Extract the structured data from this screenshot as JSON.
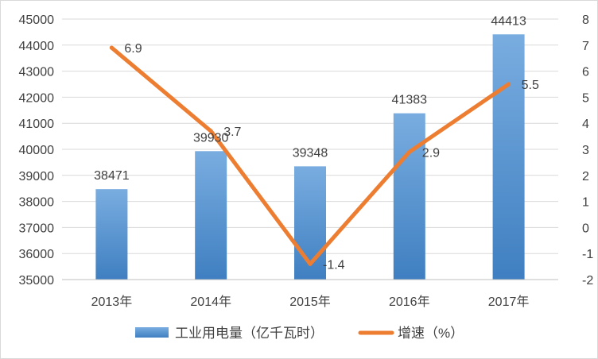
{
  "chart_data": {
    "type": "bar",
    "categories": [
      "2013年",
      "2014年",
      "2015年",
      "2016年",
      "2017年"
    ],
    "series": [
      {
        "name": "工业用电量（亿千瓦时）",
        "type": "bar",
        "axis": "left",
        "values": [
          38471,
          39930,
          39348,
          41383,
          44413
        ],
        "color": "#5b9bd5"
      },
      {
        "name": "增速（%）",
        "type": "line",
        "axis": "right",
        "values": [
          6.9,
          3.7,
          -1.4,
          2.9,
          5.5
        ],
        "color": "#ed7d31"
      }
    ],
    "y_left": {
      "min": 35000,
      "max": 45000,
      "step": 1000
    },
    "y_right": {
      "min": -2,
      "max": 8,
      "step": 1
    },
    "grid": "horizontal",
    "legend_position": "bottom"
  }
}
